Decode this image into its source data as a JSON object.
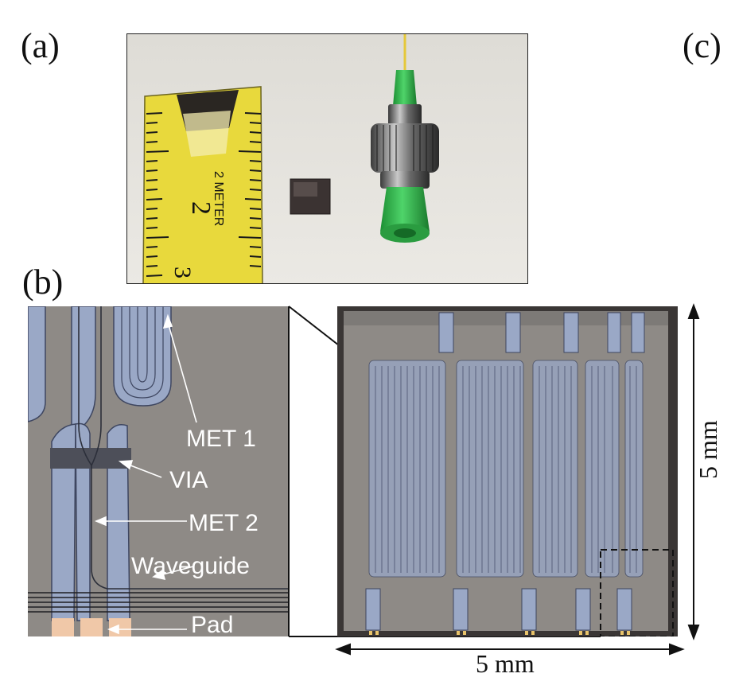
{
  "figure": {
    "panel_labels": {
      "a": "(a)",
      "b": "(b)",
      "c": "(c)"
    },
    "photo_a": {
      "tape_markings": [
        "2",
        "2 METER",
        "3"
      ]
    },
    "micrograph_b": {
      "callouts": {
        "met1": "MET 1",
        "via": "VIA",
        "met2": "MET 2",
        "waveguide": "Waveguide",
        "pad": "Pad"
      }
    },
    "chip_overview": {
      "width_label": "5 mm",
      "height_label": "5 mm"
    },
    "colors": {
      "tape": "#e8d93c",
      "connector_green": "#2fb34a",
      "metal": "#9aa8c6",
      "chip_bg": "#8e8a86",
      "pad": "#f0c8a8"
    }
  }
}
